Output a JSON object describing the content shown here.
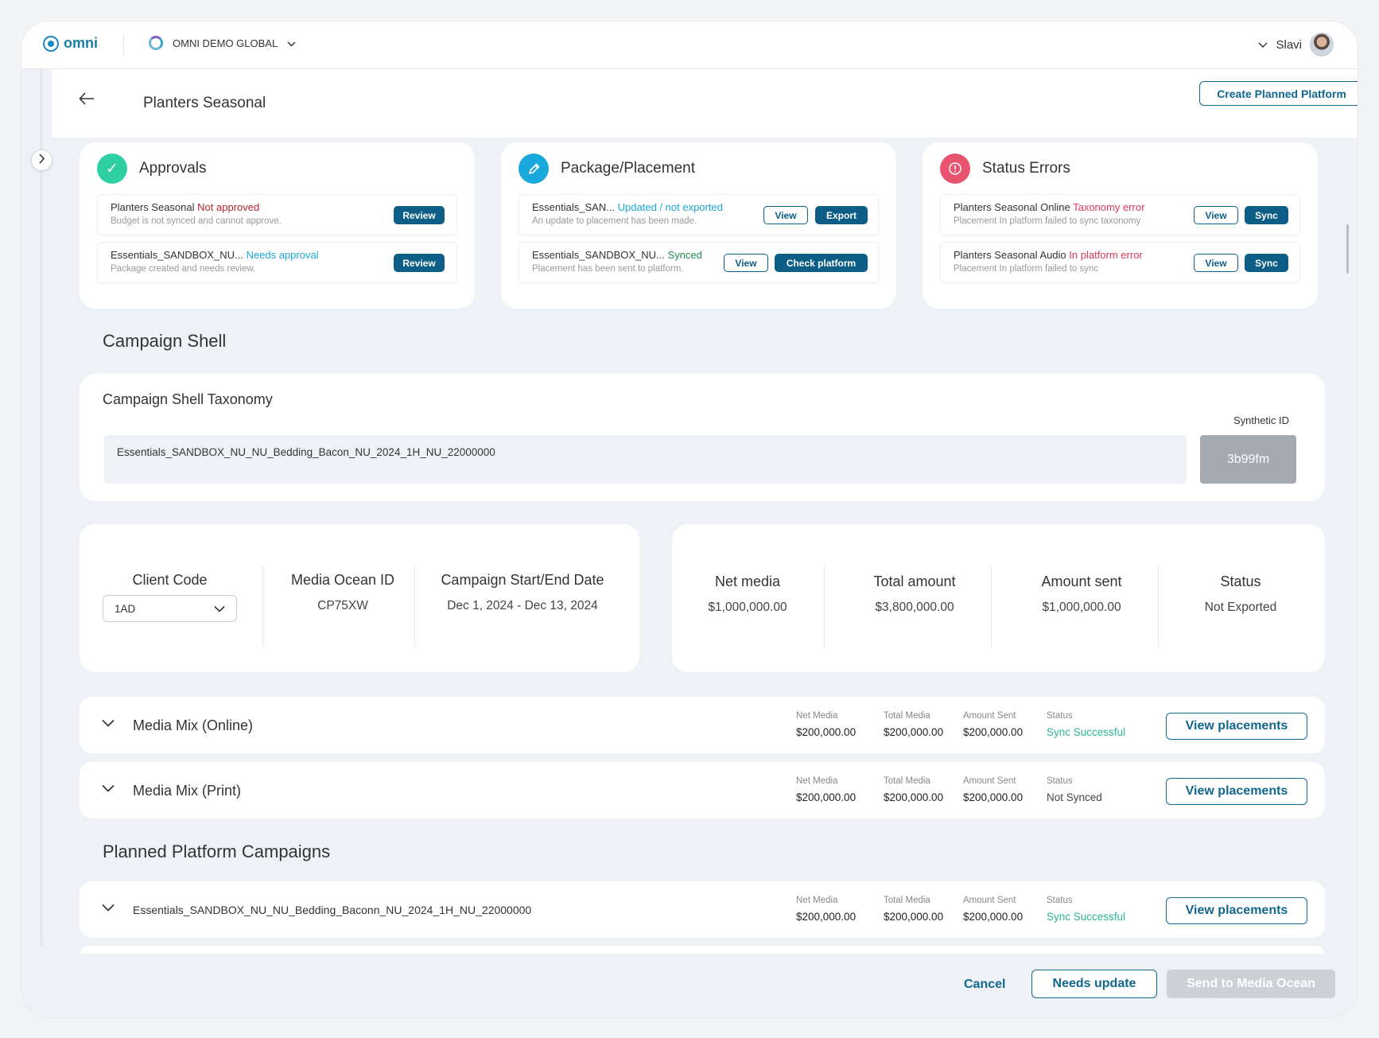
{
  "header": {
    "logo": "omni",
    "org": "OMNI DEMO GLOBAL",
    "user": "Slavi"
  },
  "titlebar": {
    "title": "Planters Seasonal",
    "create_btn": "Create Planned Platform"
  },
  "approvals": {
    "title": "Approvals",
    "rows": [
      {
        "name": "Planters Seasonal",
        "status": "Not approved",
        "desc": "Budget is not synced and cannot approve.",
        "button": "Review"
      },
      {
        "name": "Essentials_SANDBOX_NU...",
        "status": "Needs approval",
        "desc": "Package created and needs review.",
        "button": "Review"
      }
    ]
  },
  "package": {
    "title": "Package/Placement",
    "rows": [
      {
        "name": "Essentials_SAN...",
        "status": "Updated / not exported",
        "desc": "An update to placement has been made.",
        "btn1": "View",
        "btn2": "Export"
      },
      {
        "name": "Essentials_SANDBOX_NU...",
        "status": "Synced",
        "desc": "Placement has been sent to platform.",
        "btn1": "View",
        "btn2": "Check platform"
      }
    ]
  },
  "errors": {
    "title": "Status Errors",
    "rows": [
      {
        "name": "Planters Seasonal Online",
        "status": "Taxonomy error",
        "desc": "Placement In platform failed to sync taxonomy",
        "btn1": "View",
        "btn2": "Sync"
      },
      {
        "name": "Planters Seasonal Audio",
        "status": "In platform error",
        "desc": "Placement In platform failed to sync",
        "btn1": "View",
        "btn2": "Sync"
      }
    ]
  },
  "campaign_shell": {
    "heading": "Campaign Shell",
    "taxonomy_title": "Campaign Shell Taxonomy",
    "taxonomy_value": "Essentials_SANDBOX_NU_NU_Bedding_Bacon_NU_2024_1H_NU_22000000",
    "synthetic_label": "Synthetic ID",
    "synthetic_value": "3b99fm"
  },
  "details": {
    "client_code_label": "Client Code",
    "client_code_value": "1AD",
    "media_ocean_label": "Media Ocean ID",
    "media_ocean_value": "CP75XW",
    "dates_label": "Campaign Start/End Date",
    "dates_value": "Dec 1, 2024 - Dec 13, 2024"
  },
  "amounts": {
    "net_label": "Net media",
    "net_value": "$1,000,000.00",
    "total_label": "Total amount",
    "total_value": "$3,800,000.00",
    "sent_label": "Amount sent",
    "sent_value": "$1,000,000.00",
    "status_label": "Status",
    "status_value": "Not Exported"
  },
  "metric_labels": {
    "net": "Net Media",
    "total": "Total Media",
    "sent": "Amount Sent",
    "status": "Status"
  },
  "media_mixes": [
    {
      "title": "Media Mix (Online)",
      "net": "$200,000.00",
      "total": "$200,000.00",
      "sent": "$200,000.00",
      "status": "Sync Successful",
      "button": "View placements"
    },
    {
      "title": "Media Mix (Print)",
      "net": "$200,000.00",
      "total": "$200,000.00",
      "sent": "$200,000.00",
      "status": "Not Synced",
      "button": "View placements"
    }
  ],
  "planned": {
    "heading": "Planned Platform Campaigns",
    "rows": [
      {
        "title": "Essentials_SANDBOX_NU_NU_Bedding_Baconn_NU_2024_1H_NU_22000000",
        "net": "$200,000.00",
        "total": "$200,000.00",
        "sent": "$200,000.00",
        "status": "Sync Successful",
        "button": "View placements"
      }
    ]
  },
  "footer": {
    "cancel": "Cancel",
    "needs_update": "Needs update",
    "send": "Send to Media Ocean"
  },
  "colors": {
    "brand": "#12678e",
    "success": "#2cb59a",
    "error": "#e0365a",
    "approvals_icon": "#2ecfa3",
    "package_icon": "#19a9dd",
    "errors_icon": "#e8536f"
  },
  "icons": {
    "back": "arrow-left-icon",
    "expand": "chevron-right-icon",
    "row_toggle": "chevron-down-icon",
    "approvals": "check-icon",
    "package": "pencil-icon",
    "errors": "alert-icon"
  }
}
